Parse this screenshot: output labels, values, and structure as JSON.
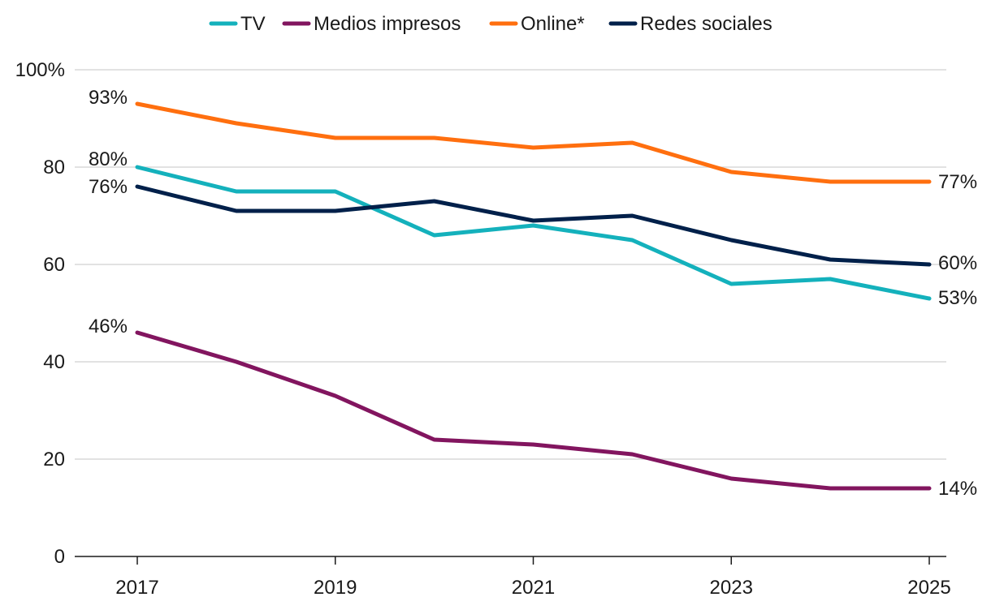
{
  "chart_data": {
    "type": "line",
    "title": "",
    "xlabel": "",
    "ylabel": "",
    "x": [
      2017,
      2018,
      2019,
      2020,
      2021,
      2022,
      2023,
      2024,
      2025
    ],
    "x_ticks": [
      "2017",
      "2019",
      "2021",
      "2023",
      "2025"
    ],
    "x_tick_values": [
      2017,
      2019,
      2021,
      2023,
      2025
    ],
    "ylim": [
      0,
      100
    ],
    "y_ticks": [
      "0",
      "20",
      "40",
      "60",
      "80",
      "100%"
    ],
    "y_tick_values": [
      0,
      20,
      40,
      60,
      80,
      100
    ],
    "grid": true,
    "legend_position": "top-center",
    "series": [
      {
        "name": "TV",
        "color": "#14b1bc",
        "values": [
          80,
          75,
          75,
          66,
          68,
          65,
          56,
          57,
          53
        ],
        "start_label": "80%",
        "end_label": "53%"
      },
      {
        "name": "Medios impresos",
        "color": "#82155f",
        "values": [
          46,
          40,
          33,
          24,
          23,
          21,
          16,
          14,
          14
        ],
        "start_label": "46%",
        "end_label": "14%"
      },
      {
        "name": "Online*",
        "color": "#ff6f0f",
        "values": [
          93,
          89,
          86,
          86,
          84,
          85,
          79,
          77,
          77
        ],
        "start_label": "93%",
        "end_label": "77%"
      },
      {
        "name": "Redes sociales",
        "color": "#00204a",
        "values": [
          76,
          71,
          71,
          73,
          69,
          70,
          65,
          61,
          60
        ],
        "start_label": "76%",
        "end_label": "60%"
      }
    ]
  }
}
